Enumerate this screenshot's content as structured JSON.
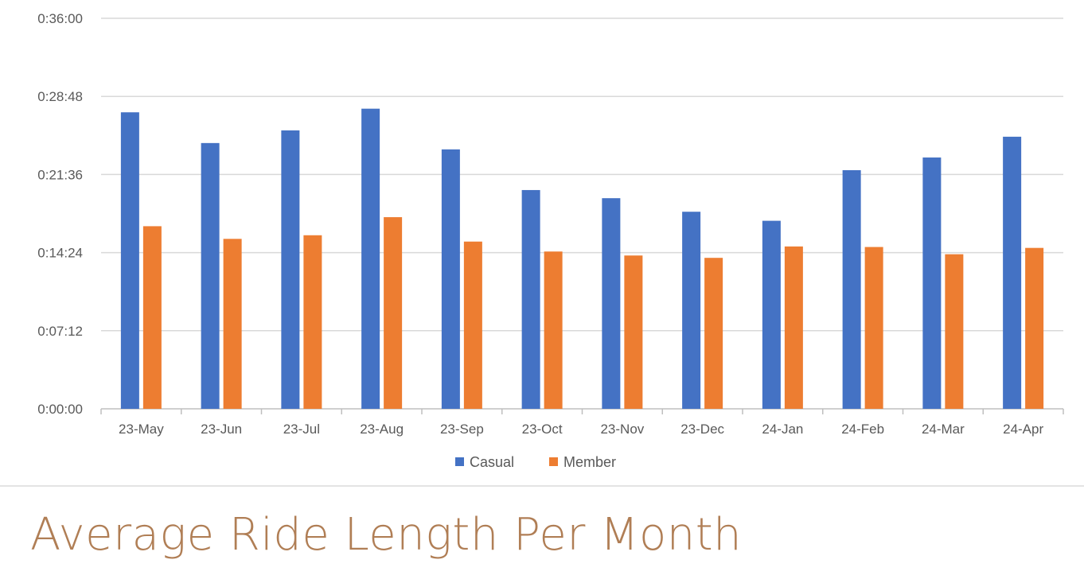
{
  "chart_data": {
    "type": "bar",
    "title": "",
    "xlabel": "",
    "ylabel": "",
    "y_unit": "h:mm:ss",
    "ylim": [
      "0:00:00",
      "0:36:00"
    ],
    "y_ticks": [
      "0:00:00",
      "0:07:12",
      "0:14:24",
      "0:21:36",
      "0:28:48",
      "0:36:00"
    ],
    "gridlines": true,
    "legend_position": "bottom",
    "categories": [
      "23-May",
      "23-Jun",
      "23-Jul",
      "23-Aug",
      "23-Sep",
      "23-Oct",
      "23-Nov",
      "23-Dec",
      "24-Jan",
      "24-Feb",
      "24-Mar",
      "24-Apr"
    ],
    "series": [
      {
        "name": "Casual",
        "color": "#4472c4",
        "values": [
          "0:27:20",
          "0:24:30",
          "0:25:40",
          "0:27:40",
          "0:23:55",
          "0:20:10",
          "0:19:25",
          "0:18:10",
          "0:17:20",
          "0:22:00",
          "0:23:10",
          "0:25:05"
        ]
      },
      {
        "name": "Member",
        "color": "#ed7d31",
        "values": [
          "0:16:50",
          "0:15:40",
          "0:16:00",
          "0:17:40",
          "0:15:25",
          "0:14:30",
          "0:14:08",
          "0:13:55",
          "0:14:58",
          "0:14:55",
          "0:14:15",
          "0:14:50"
        ]
      }
    ]
  },
  "caption": "Average Ride Length Per Month"
}
